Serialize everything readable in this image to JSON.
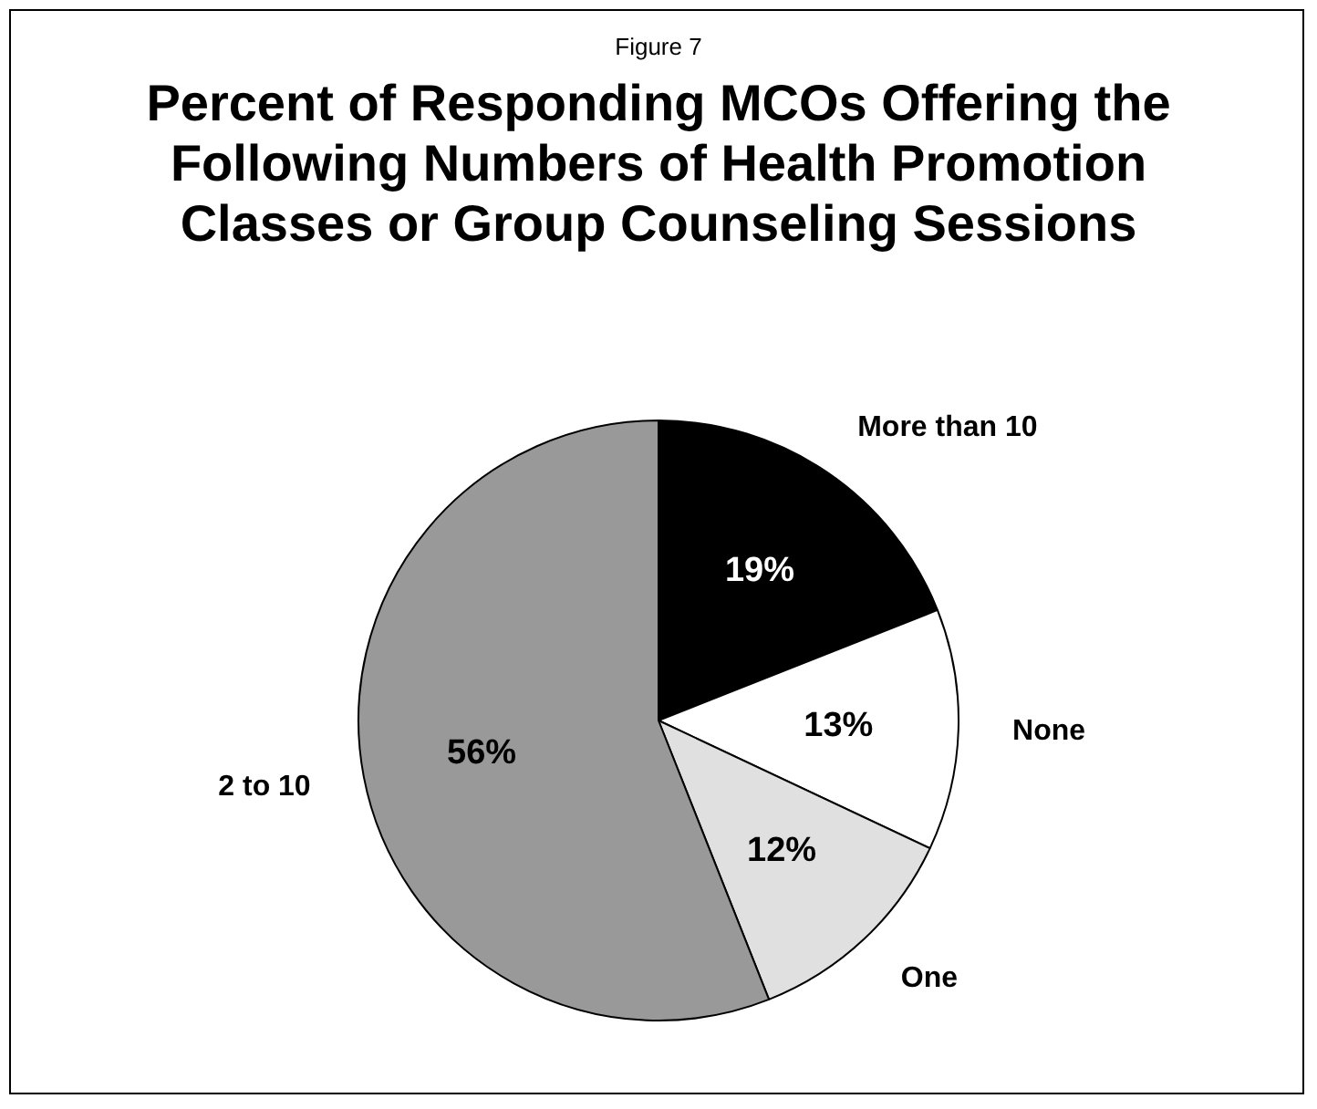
{
  "chart_data": {
    "type": "pie",
    "title": "Percent of Responding MCOs Offering the Following Numbers of Health Promotion Classes or Group Counseling Sessions",
    "annotations": [
      "Figure 7"
    ],
    "categories": [
      "More than 10",
      "None",
      "One",
      "2 to 10"
    ],
    "values": [
      19,
      13,
      12,
      56
    ],
    "value_labels": [
      "19%",
      "13%",
      "12%",
      "56%"
    ],
    "colors": [
      "#000000",
      "#ffffff",
      "#e0e0e0",
      "#999999"
    ],
    "legend": false
  }
}
